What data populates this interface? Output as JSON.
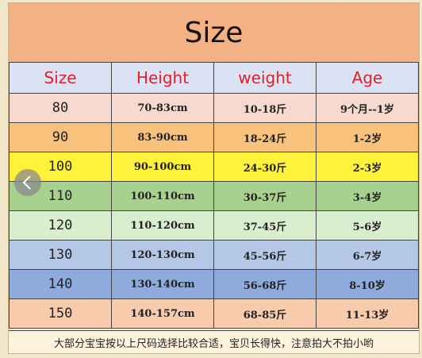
{
  "header": {
    "title": "Size"
  },
  "table": {
    "columns": [
      "Size",
      "Height",
      "weight",
      "Age"
    ],
    "rows": [
      [
        "80",
        "70-83cm",
        "10-18斤",
        "9个月--1岁"
      ],
      [
        "90",
        "83-90cm",
        "18-24斤",
        "1-2岁"
      ],
      [
        "100",
        "90-100cm",
        "24-30斤",
        "2-3岁"
      ],
      [
        "110",
        "100-110cm",
        "30-37斤",
        "3-4岁"
      ],
      [
        "120",
        "110-120cm",
        "37-45斤",
        "5-6岁"
      ],
      [
        "130",
        "120-130cm",
        "45-56斤",
        "6-7岁"
      ],
      [
        "140",
        "130-140cm",
        "56-68斤",
        "8-10岁"
      ],
      [
        "150",
        "140-157cm",
        "68-85斤",
        "11-13岁"
      ]
    ]
  },
  "footer": {
    "note": "大部分宝宝按以上尺码选择比较合适，宝贝长得快，注意拍大不拍小哟"
  }
}
